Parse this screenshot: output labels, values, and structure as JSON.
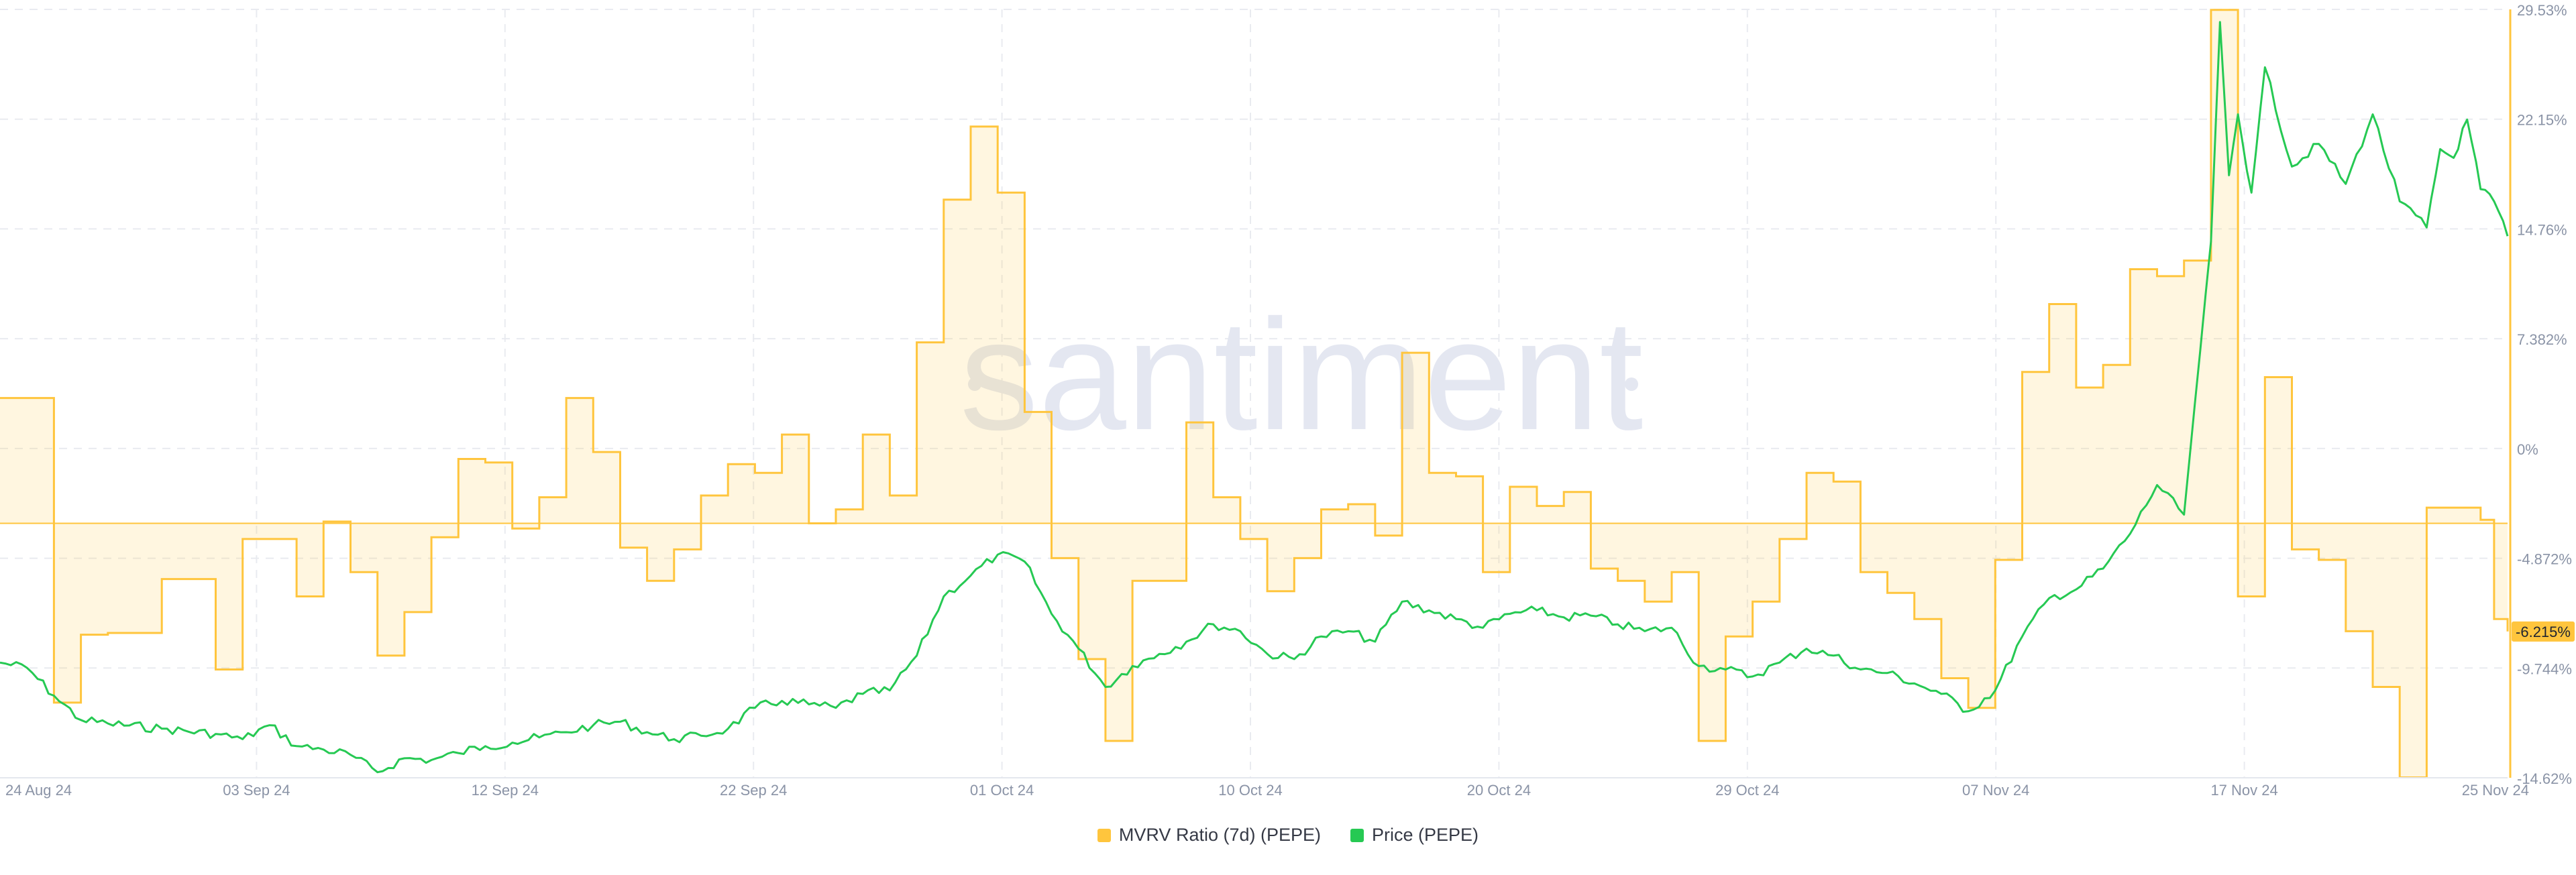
{
  "watermark": "santiment",
  "chart_data": {
    "type": "line",
    "x_tick_labels": [
      "24 Aug 24",
      "03 Sep 24",
      "12 Sep 24",
      "22 Sep 24",
      "01 Oct 24",
      "10 Oct 24",
      "20 Oct 24",
      "29 Oct 24",
      "07 Nov 24",
      "17 Nov 24",
      "25 Nov 24"
    ],
    "x_range": [
      "2024-08-24",
      "2024-11-25"
    ],
    "y_tick_labels": [
      "29.53%",
      "22.15%",
      "14.76%",
      "7.382%",
      "0%",
      "-4.872%",
      "-9.744%",
      "-14.62%"
    ],
    "ylim": [
      -14.62,
      29.53
    ],
    "grid": true,
    "legend_position": "bottom",
    "current_value_badge": "-6.215%",
    "series": [
      {
        "name": "MVRV Ratio (7d) (PEPE)",
        "color": "#ffc53d",
        "style": "step-area",
        "points": [
          [
            "2024-08-24",
            7.2
          ],
          [
            "2024-08-26",
            -10.3
          ],
          [
            "2024-08-27",
            -6.4
          ],
          [
            "2024-08-28",
            -6.3
          ],
          [
            "2024-08-30",
            -3.2
          ],
          [
            "2024-09-01",
            -8.4
          ],
          [
            "2024-09-02",
            -0.9
          ],
          [
            "2024-09-04",
            -4.2
          ],
          [
            "2024-09-05",
            0.1
          ],
          [
            "2024-09-06",
            -2.8
          ],
          [
            "2024-09-07",
            -7.6
          ],
          [
            "2024-09-08",
            -5.1
          ],
          [
            "2024-09-09",
            -0.8
          ],
          [
            "2024-09-10",
            3.7
          ],
          [
            "2024-09-11",
            3.5
          ],
          [
            "2024-09-12",
            -0.3
          ],
          [
            "2024-09-13",
            1.5
          ],
          [
            "2024-09-14",
            7.2
          ],
          [
            "2024-09-15",
            4.1
          ],
          [
            "2024-09-16",
            -1.4
          ],
          [
            "2024-09-17",
            -3.3
          ],
          [
            "2024-09-18",
            -1.5
          ],
          [
            "2024-09-19",
            1.6
          ],
          [
            "2024-09-20",
            3.4
          ],
          [
            "2024-09-21",
            2.9
          ],
          [
            "2024-09-22",
            5.1
          ],
          [
            "2024-09-23",
            0.0
          ],
          [
            "2024-09-24",
            0.8
          ],
          [
            "2024-09-25",
            5.1
          ],
          [
            "2024-09-26",
            1.6
          ],
          [
            "2024-09-27",
            10.4
          ],
          [
            "2024-09-28",
            18.6
          ],
          [
            "2024-09-29",
            22.8
          ],
          [
            "2024-09-30",
            19.0
          ],
          [
            "2024-10-01",
            6.4
          ],
          [
            "2024-10-02",
            -2.0
          ],
          [
            "2024-10-03",
            -7.8
          ],
          [
            "2024-10-04",
            -12.5
          ],
          [
            "2024-10-05",
            -3.3
          ],
          [
            "2024-10-07",
            5.8
          ],
          [
            "2024-10-08",
            1.5
          ],
          [
            "2024-10-09",
            -0.9
          ],
          [
            "2024-10-10",
            -3.9
          ],
          [
            "2024-10-11",
            -2.0
          ],
          [
            "2024-10-12",
            0.8
          ],
          [
            "2024-10-13",
            1.1
          ],
          [
            "2024-10-14",
            -0.7
          ],
          [
            "2024-10-15",
            9.8
          ],
          [
            "2024-10-16",
            2.9
          ],
          [
            "2024-10-17",
            2.7
          ],
          [
            "2024-10-18",
            -2.8
          ],
          [
            "2024-10-19",
            2.1
          ],
          [
            "2024-10-20",
            1.0
          ],
          [
            "2024-10-21",
            1.8
          ],
          [
            "2024-10-22",
            -2.6
          ],
          [
            "2024-10-23",
            -3.3
          ],
          [
            "2024-10-24",
            -4.5
          ],
          [
            "2024-10-25",
            -2.8
          ],
          [
            "2024-10-26",
            -12.5
          ],
          [
            "2024-10-27",
            -6.5
          ],
          [
            "2024-10-28",
            -4.5
          ],
          [
            "2024-10-29",
            -0.9
          ],
          [
            "2024-10-30",
            2.9
          ],
          [
            "2024-10-31",
            2.4
          ],
          [
            "2024-11-01",
            -2.8
          ],
          [
            "2024-11-02",
            -4.0
          ],
          [
            "2024-11-03",
            -5.5
          ],
          [
            "2024-11-04",
            -8.9
          ],
          [
            "2024-11-05",
            -10.6
          ],
          [
            "2024-11-06",
            -2.1
          ],
          [
            "2024-11-07",
            8.7
          ],
          [
            "2024-11-08",
            12.6
          ],
          [
            "2024-11-09",
            7.8
          ],
          [
            "2024-11-10",
            9.1
          ],
          [
            "2024-11-11",
            14.6
          ],
          [
            "2024-11-12",
            14.2
          ],
          [
            "2024-11-13",
            15.1
          ],
          [
            "2024-11-14",
            29.5
          ],
          [
            "2024-11-15",
            -4.2
          ],
          [
            "2024-11-16",
            8.4
          ],
          [
            "2024-11-17",
            -1.5
          ],
          [
            "2024-11-18",
            -2.1
          ],
          [
            "2024-11-19",
            -6.2
          ],
          [
            "2024-11-20",
            -9.4
          ],
          [
            "2024-11-21",
            -14.6
          ],
          [
            "2024-11-22",
            0.9
          ],
          [
            "2024-11-24",
            0.2
          ],
          [
            "2024-11-24T12:00",
            -5.5
          ],
          [
            "2024-11-25",
            -6.215
          ]
        ]
      },
      {
        "name": "Price (PEPE)",
        "color": "#26c953",
        "style": "line",
        "points": [
          [
            "2024-08-24",
            -8.0
          ],
          [
            "2024-08-25",
            -8.3
          ],
          [
            "2024-08-26",
            -9.9
          ],
          [
            "2024-08-27",
            -11.3
          ],
          [
            "2024-08-28",
            -11.5
          ],
          [
            "2024-08-30",
            -11.8
          ],
          [
            "2024-09-01",
            -12.1
          ],
          [
            "2024-09-02",
            -12.4
          ],
          [
            "2024-09-03",
            -11.6
          ],
          [
            "2024-09-04",
            -12.8
          ],
          [
            "2024-09-05",
            -13.0
          ],
          [
            "2024-09-06",
            -13.3
          ],
          [
            "2024-09-07",
            -14.3
          ],
          [
            "2024-09-08",
            -13.5
          ],
          [
            "2024-09-09",
            -13.6
          ],
          [
            "2024-09-10",
            -13.2
          ],
          [
            "2024-09-11",
            -12.8
          ],
          [
            "2024-09-12",
            -12.6
          ],
          [
            "2024-09-13",
            -12.3
          ],
          [
            "2024-09-14",
            -12.0
          ],
          [
            "2024-09-15",
            -11.6
          ],
          [
            "2024-09-16",
            -11.4
          ],
          [
            "2024-09-17",
            -12.0
          ],
          [
            "2024-09-18",
            -12.4
          ],
          [
            "2024-09-19",
            -12.2
          ],
          [
            "2024-09-20",
            -11.8
          ],
          [
            "2024-09-21",
            -10.6
          ],
          [
            "2024-09-22",
            -10.2
          ],
          [
            "2024-09-23",
            -10.4
          ],
          [
            "2024-09-24",
            -10.6
          ],
          [
            "2024-09-25",
            -9.8
          ],
          [
            "2024-09-26",
            -9.6
          ],
          [
            "2024-09-27",
            -7.6
          ],
          [
            "2024-09-28",
            -4.2
          ],
          [
            "2024-09-29",
            -3.0
          ],
          [
            "2024-09-30",
            -1.8
          ],
          [
            "2024-10-01",
            -2.2
          ],
          [
            "2024-10-02",
            -5.2
          ],
          [
            "2024-10-03",
            -7.2
          ],
          [
            "2024-10-04",
            -9.4
          ],
          [
            "2024-10-05",
            -8.2
          ],
          [
            "2024-10-06",
            -7.5
          ],
          [
            "2024-10-07",
            -6.8
          ],
          [
            "2024-10-08",
            -5.8
          ],
          [
            "2024-10-09",
            -6.2
          ],
          [
            "2024-10-10",
            -7.5
          ],
          [
            "2024-10-11",
            -7.8
          ],
          [
            "2024-10-12",
            -6.5
          ],
          [
            "2024-10-13",
            -6.2
          ],
          [
            "2024-10-14",
            -6.8
          ],
          [
            "2024-10-15",
            -4.5
          ],
          [
            "2024-10-16",
            -5.0
          ],
          [
            "2024-10-17",
            -5.5
          ],
          [
            "2024-10-18",
            -6.0
          ],
          [
            "2024-10-19",
            -5.2
          ],
          [
            "2024-10-20",
            -5.0
          ],
          [
            "2024-10-21",
            -5.4
          ],
          [
            "2024-10-22",
            -5.3
          ],
          [
            "2024-10-23",
            -5.8
          ],
          [
            "2024-10-24",
            -6.2
          ],
          [
            "2024-10-25",
            -6.0
          ],
          [
            "2024-10-26",
            -8.2
          ],
          [
            "2024-10-27",
            -8.4
          ],
          [
            "2024-10-28",
            -8.8
          ],
          [
            "2024-10-29",
            -8.0
          ],
          [
            "2024-10-30",
            -7.2
          ],
          [
            "2024-10-31",
            -7.6
          ],
          [
            "2024-11-01",
            -8.4
          ],
          [
            "2024-11-02",
            -8.6
          ],
          [
            "2024-11-03",
            -9.2
          ],
          [
            "2024-11-04",
            -9.8
          ],
          [
            "2024-11-05",
            -10.8
          ],
          [
            "2024-11-06",
            -9.6
          ],
          [
            "2024-11-07",
            -6.5
          ],
          [
            "2024-11-08",
            -4.3
          ],
          [
            "2024-11-09",
            -3.8
          ],
          [
            "2024-11-10",
            -2.6
          ],
          [
            "2024-11-11",
            -0.6
          ],
          [
            "2024-11-12",
            2.2
          ],
          [
            "2024-11-13",
            0.5
          ],
          [
            "2024-11-14",
            16.2
          ],
          [
            "2024-11-14T08:00",
            28.8
          ],
          [
            "2024-11-14T16:00",
            20.0
          ],
          [
            "2024-11-15",
            23.5
          ],
          [
            "2024-11-15T12:00",
            19.0
          ],
          [
            "2024-11-16",
            26.2
          ],
          [
            "2024-11-17",
            20.5
          ],
          [
            "2024-11-18",
            21.8
          ],
          [
            "2024-11-19",
            19.5
          ],
          [
            "2024-11-20",
            23.5
          ],
          [
            "2024-11-21",
            18.5
          ],
          [
            "2024-11-22",
            17.0
          ],
          [
            "2024-11-22T12:00",
            21.5
          ],
          [
            "2024-11-23",
            21.0
          ],
          [
            "2024-11-23T12:00",
            23.2
          ],
          [
            "2024-11-24",
            19.2
          ],
          [
            "2024-11-24T12:00",
            18.5
          ],
          [
            "2024-11-25",
            16.5
          ]
        ]
      }
    ]
  }
}
